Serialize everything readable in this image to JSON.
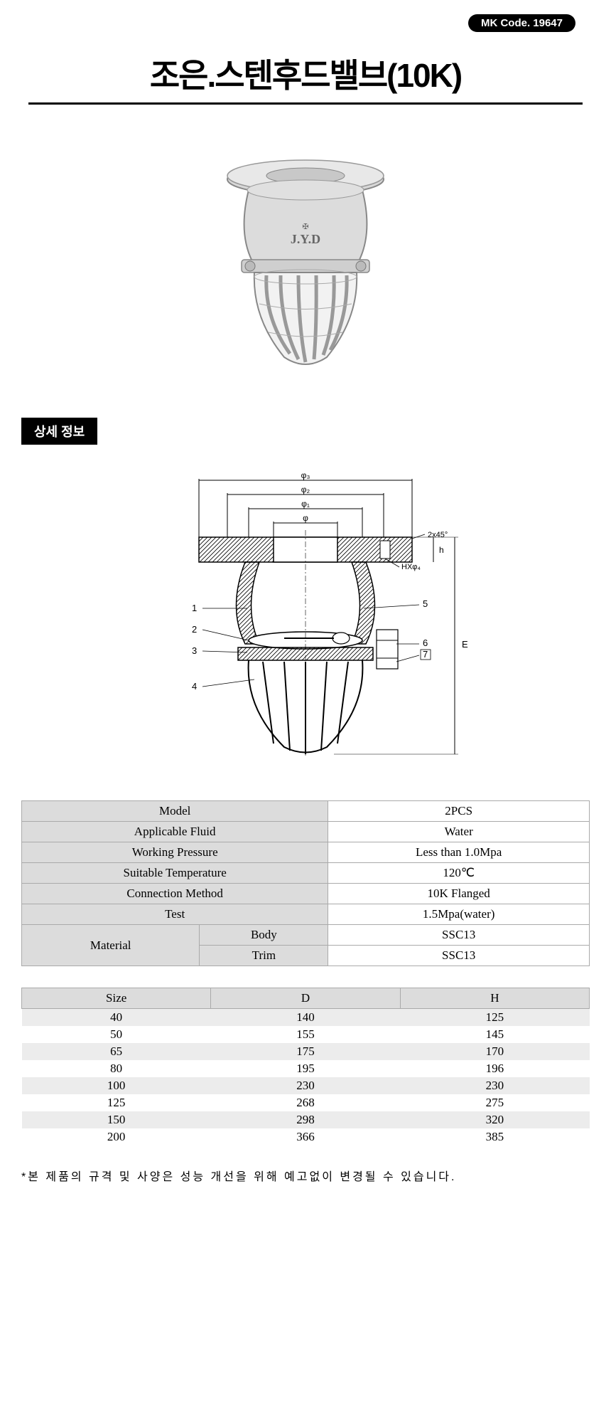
{
  "code_badge": "MK Code. 19647",
  "title": "조은.스텐후드밸브(10K)",
  "section_label": "상세 정보",
  "spec_table": {
    "rows": [
      {
        "label": "Model",
        "value": "2PCS"
      },
      {
        "label": "Applicable Fluid",
        "value": "Water"
      },
      {
        "label": "Working Pressure",
        "value": "Less than 1.0Mpa"
      },
      {
        "label": "Suitable Temperature",
        "value": "120℃"
      },
      {
        "label": "Connection Method",
        "value": "10K Flanged"
      },
      {
        "label": "Test",
        "value": "1.5Mpa(water)"
      }
    ],
    "material": {
      "label": "Material",
      "body_label": "Body",
      "body_value": "SSC13",
      "trim_label": "Trim",
      "trim_value": "SSC13"
    }
  },
  "size_table": {
    "headers": [
      "Size",
      "D",
      "H"
    ],
    "rows": [
      [
        "40",
        "140",
        "125"
      ],
      [
        "50",
        "155",
        "145"
      ],
      [
        "65",
        "175",
        "170"
      ],
      [
        "80",
        "195",
        "196"
      ],
      [
        "100",
        "230",
        "230"
      ],
      [
        "125",
        "268",
        "275"
      ],
      [
        "150",
        "298",
        "320"
      ],
      [
        "200",
        "366",
        "385"
      ]
    ]
  },
  "footnote": "*본 제품의 규격 및 사양은 성능 개선을 위해 예고없이 변경될 수 있습니다.",
  "diagram": {
    "callouts_left": [
      "1",
      "2",
      "3",
      "4"
    ],
    "callouts_right": [
      "5",
      "6",
      "7"
    ],
    "dim_labels": [
      "φ₁",
      "φ₂",
      "φ₃",
      "φ",
      "HXφ₄",
      "2x45°",
      "h",
      "E"
    ]
  },
  "colors": {
    "badge_bg": "#000000",
    "badge_text": "#ffffff",
    "table_header_bg": "#dcdcdc",
    "border": "#aaaaaa",
    "alt_row": "#ececec"
  }
}
